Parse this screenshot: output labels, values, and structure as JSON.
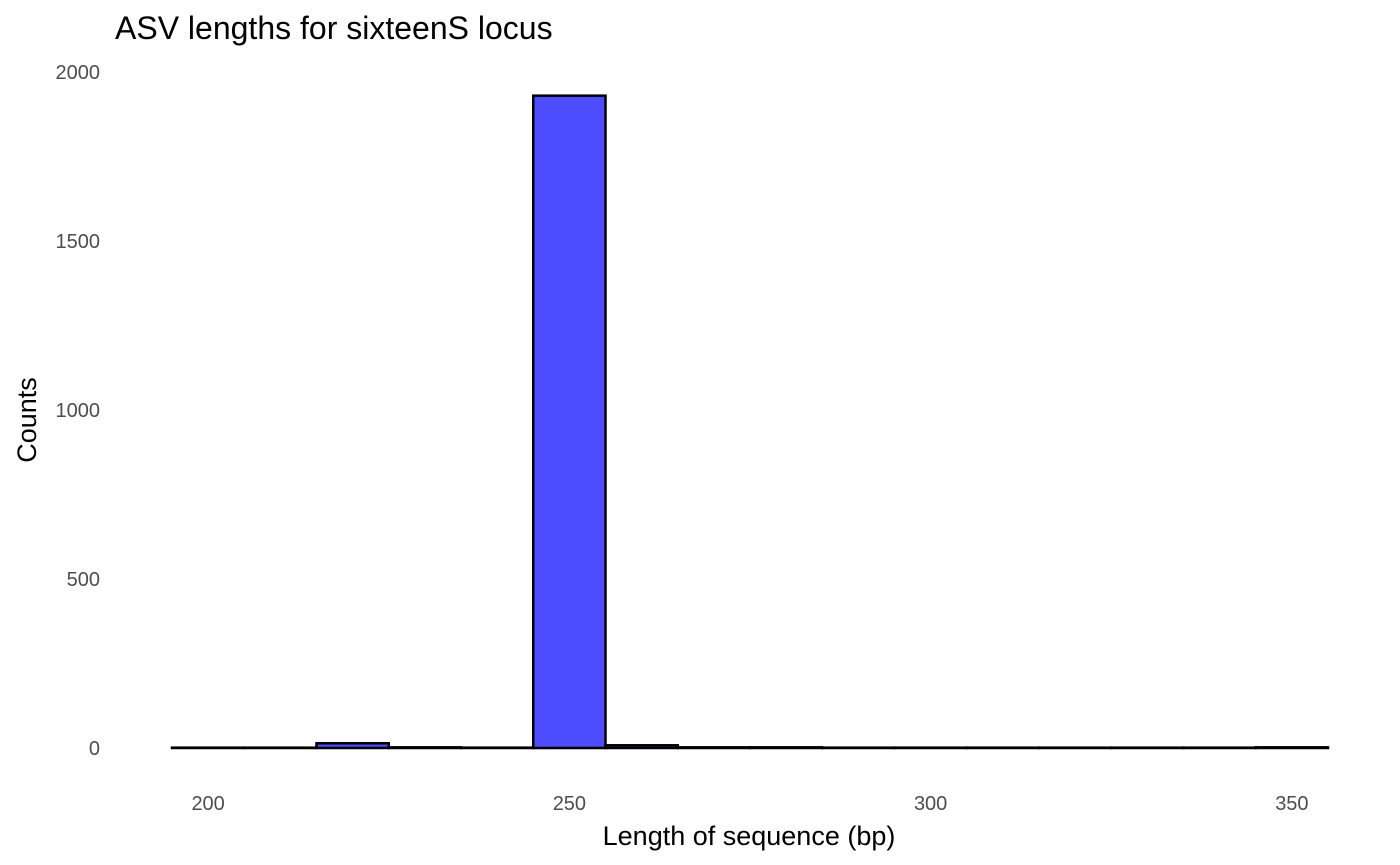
{
  "chart_data": {
    "type": "bar",
    "title": "ASV lengths for sixteenS locus",
    "xlabel": "Length of sequence (bp)",
    "ylabel": "Counts",
    "xlim": [
      195,
      355
    ],
    "ylim": [
      0,
      2000
    ],
    "xticks": [
      200,
      250,
      300,
      350
    ],
    "yticks": [
      0,
      500,
      1000,
      1500,
      2000
    ],
    "bin_width": 10,
    "grid": false,
    "legend": "none",
    "fill_color": "#4d4dff",
    "outline_color": "#000000",
    "bins": [
      {
        "start": 195,
        "end": 205,
        "count": 1
      },
      {
        "start": 205,
        "end": 215,
        "count": 1
      },
      {
        "start": 215,
        "end": 225,
        "count": 14
      },
      {
        "start": 225,
        "end": 235,
        "count": 2
      },
      {
        "start": 235,
        "end": 245,
        "count": 1
      },
      {
        "start": 245,
        "end": 255,
        "count": 1930
      },
      {
        "start": 255,
        "end": 265,
        "count": 8
      },
      {
        "start": 265,
        "end": 275,
        "count": 2
      },
      {
        "start": 275,
        "end": 285,
        "count": 2
      },
      {
        "start": 285,
        "end": 295,
        "count": 1
      },
      {
        "start": 295,
        "end": 305,
        "count": 1
      },
      {
        "start": 305,
        "end": 315,
        "count": 1
      },
      {
        "start": 315,
        "end": 325,
        "count": 1
      },
      {
        "start": 325,
        "end": 335,
        "count": 1
      },
      {
        "start": 335,
        "end": 345,
        "count": 1
      },
      {
        "start": 345,
        "end": 355,
        "count": 2
      }
    ]
  }
}
